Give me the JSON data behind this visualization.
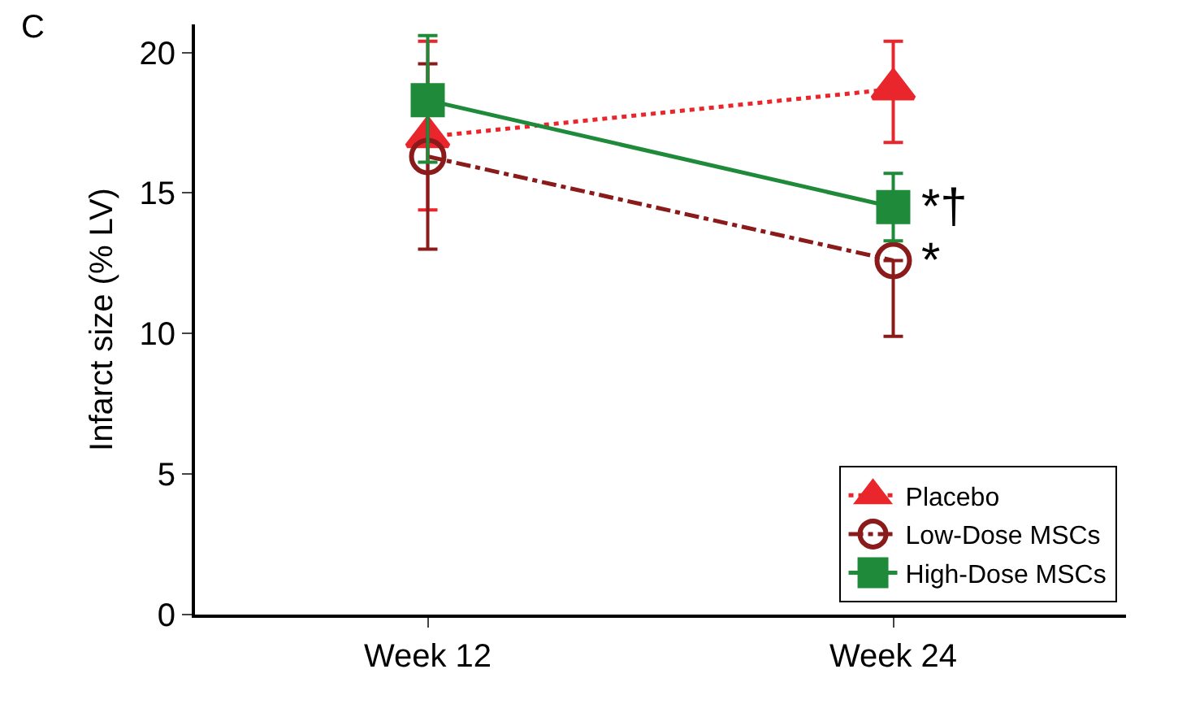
{
  "chart_data": {
    "type": "line",
    "title": "C",
    "ylabel": "Infarct size (% LV)",
    "categories": [
      "Week 12",
      "Week 24"
    ],
    "ylim": [
      0,
      21
    ],
    "yticks": [
      0,
      5,
      10,
      15,
      20
    ],
    "grid": false,
    "legend": "bottom right",
    "series": [
      {
        "name": "Placebo",
        "color": "#e8262b",
        "values": [
          17.0,
          18.7
        ],
        "errors": [
          [
            14.4,
            20.4
          ],
          [
            16.8,
            20.4
          ]
        ],
        "marker": "triangle",
        "line_style": "dotted"
      },
      {
        "name": "Low-Dose MSCs",
        "color": "#8b1a1a",
        "values": [
          16.3,
          12.6
        ],
        "errors": [
          [
            13.0,
            19.6
          ],
          [
            9.9,
            12.6
          ]
        ],
        "marker": "circle",
        "line_style": "dashdot"
      },
      {
        "name": "High-Dose MSCs",
        "color": "#1e8a3a",
        "values": [
          18.3,
          14.5
        ],
        "errors": [
          [
            16.1,
            20.6
          ],
          [
            13.3,
            15.7
          ]
        ],
        "marker": "square",
        "line_style": "solid"
      }
    ],
    "annotations": [
      {
        "text": "*†",
        "x": "Week 24",
        "y": 14.5
      },
      {
        "text": "*",
        "x": "Week 24",
        "y": 12.6
      }
    ]
  }
}
